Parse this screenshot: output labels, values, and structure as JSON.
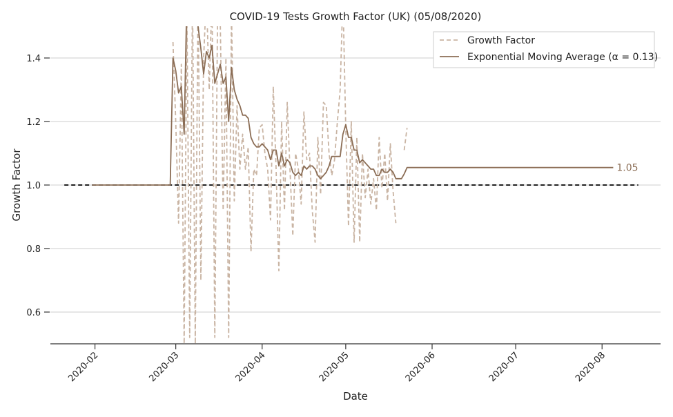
{
  "chart_data": {
    "type": "line",
    "title": "COVID-19 Tests Growth Factor (UK) (05/08/2020)",
    "xlabel": "Date",
    "ylabel": "Growth Factor",
    "xlim": [
      "2020-01-16",
      "2020-08-22"
    ],
    "ylim": [
      0.5,
      1.5
    ],
    "x_ticks": [
      "2020-02-01",
      "2020-03-01",
      "2020-04-01",
      "2020-05-01",
      "2020-06-01",
      "2020-07-01",
      "2020-08-01"
    ],
    "x_tick_labels": [
      "2020-02",
      "2020-03",
      "2020-04",
      "2020-05",
      "2020-06",
      "2020-07",
      "2020-08"
    ],
    "y_ticks": [
      0.6,
      0.8,
      1.0,
      1.2,
      1.4
    ],
    "y_tick_labels": [
      "0.6",
      "0.8",
      "1.0",
      "1.2",
      "1.4"
    ],
    "grid": "horizontal",
    "legend_position": "upper-right",
    "series": [
      {
        "name": "Growth Factor",
        "style": "dashed",
        "color": "#c9b4a3",
        "points": [
          [
            "2020-02-29",
            1.45
          ],
          [
            "2020-03-01",
            1.2
          ],
          [
            "2020-03-02",
            0.88
          ],
          [
            "2020-03-03",
            1.38
          ],
          [
            "2020-03-04",
            0.5
          ],
          [
            "2020-03-05",
            1.55
          ],
          [
            "2020-03-06",
            0.52
          ],
          [
            "2020-03-07",
            1.6
          ],
          [
            "2020-03-08",
            0.5
          ],
          [
            "2020-03-09",
            1.6
          ],
          [
            "2020-03-10",
            0.7
          ],
          [
            "2020-03-11",
            1.4
          ],
          [
            "2020-03-12",
            1.6
          ],
          [
            "2020-03-13",
            1.3
          ],
          [
            "2020-03-14",
            1.6
          ],
          [
            "2020-03-15",
            0.52
          ],
          [
            "2020-03-16",
            1.55
          ],
          [
            "2020-03-17",
            1.5
          ],
          [
            "2020-03-18",
            0.92
          ],
          [
            "2020-03-19",
            1.4
          ],
          [
            "2020-03-20",
            0.52
          ],
          [
            "2020-03-21",
            1.55
          ],
          [
            "2020-03-22",
            0.95
          ],
          [
            "2020-03-23",
            1.25
          ],
          [
            "2020-03-24",
            1.05
          ],
          [
            "2020-03-25",
            1.16
          ],
          [
            "2020-03-26",
            1.05
          ],
          [
            "2020-03-27",
            1.12
          ],
          [
            "2020-03-28",
            0.79
          ],
          [
            "2020-03-29",
            1.05
          ],
          [
            "2020-03-30",
            1.03
          ],
          [
            "2020-03-31",
            1.18
          ],
          [
            "2020-04-01",
            1.19
          ],
          [
            "2020-04-02",
            1.1
          ],
          [
            "2020-04-03",
            1.05
          ],
          [
            "2020-04-04",
            0.89
          ],
          [
            "2020-04-05",
            1.31
          ],
          [
            "2020-04-06",
            1.05
          ],
          [
            "2020-04-07",
            0.73
          ],
          [
            "2020-04-08",
            1.2
          ],
          [
            "2020-04-09",
            0.92
          ],
          [
            "2020-04-10",
            1.26
          ],
          [
            "2020-04-11",
            1.05
          ],
          [
            "2020-04-12",
            0.84
          ],
          [
            "2020-04-13",
            1.1
          ],
          [
            "2020-04-14",
            1.05
          ],
          [
            "2020-04-15",
            0.94
          ],
          [
            "2020-04-16",
            1.23
          ],
          [
            "2020-04-17",
            1.08
          ],
          [
            "2020-04-18",
            1.1
          ],
          [
            "2020-04-19",
            0.92
          ],
          [
            "2020-04-20",
            0.82
          ],
          [
            "2020-04-21",
            1.15
          ],
          [
            "2020-04-22",
            0.97
          ],
          [
            "2020-04-23",
            1.26
          ],
          [
            "2020-04-24",
            1.25
          ],
          [
            "2020-04-25",
            1.1
          ],
          [
            "2020-04-26",
            1.03
          ],
          [
            "2020-04-27",
            1.08
          ],
          [
            "2020-04-28",
            1.2
          ],
          [
            "2020-04-29",
            1.3
          ],
          [
            "2020-04-30",
            1.6
          ],
          [
            "2020-05-01",
            1.18
          ],
          [
            "2020-05-02",
            0.87
          ],
          [
            "2020-05-03",
            1.2
          ],
          [
            "2020-05-04",
            0.82
          ],
          [
            "2020-05-05",
            1.15
          ],
          [
            "2020-05-06",
            0.82
          ],
          [
            "2020-05-07",
            1.1
          ],
          [
            "2020-05-08",
            0.96
          ],
          [
            "2020-05-09",
            1.05
          ],
          [
            "2020-05-10",
            0.94
          ],
          [
            "2020-05-11",
            1.02
          ],
          [
            "2020-05-12",
            0.92
          ],
          [
            "2020-05-13",
            1.15
          ],
          [
            "2020-05-14",
            0.99
          ],
          [
            "2020-05-15",
            1.1
          ],
          [
            "2020-05-16",
            0.95
          ],
          [
            "2020-05-17",
            1.13
          ],
          [
            "2020-05-18",
            0.98
          ],
          [
            "2020-05-19",
            0.88
          ],
          null,
          [
            "2020-05-22",
            1.11
          ],
          [
            "2020-05-23",
            1.18
          ]
        ]
      },
      {
        "name": "Exponential Moving Average (α = 0.13)",
        "style": "solid",
        "color": "#8b6d55",
        "points": [
          [
            "2020-01-31",
            1.0
          ],
          [
            "2020-02-28",
            1.0
          ],
          [
            "2020-02-29",
            1.4
          ],
          [
            "2020-03-01",
            1.36
          ],
          [
            "2020-03-02",
            1.29
          ],
          [
            "2020-03-03",
            1.31
          ],
          [
            "2020-03-04",
            1.16
          ],
          [
            "2020-03-05",
            1.6
          ],
          [
            "2020-03-06",
            1.6
          ],
          [
            "2020-03-07",
            1.6
          ],
          [
            "2020-03-08",
            1.6
          ],
          [
            "2020-03-09",
            1.5
          ],
          [
            "2020-03-10",
            1.43
          ],
          [
            "2020-03-11",
            1.35
          ],
          [
            "2020-03-12",
            1.42
          ],
          [
            "2020-03-13",
            1.4
          ],
          [
            "2020-03-14",
            1.44
          ],
          [
            "2020-03-15",
            1.32
          ],
          [
            "2020-03-16",
            1.35
          ],
          [
            "2020-03-17",
            1.38
          ],
          [
            "2020-03-18",
            1.32
          ],
          [
            "2020-03-19",
            1.34
          ],
          [
            "2020-03-20",
            1.2
          ],
          [
            "2020-03-21",
            1.37
          ],
          [
            "2020-03-22",
            1.3
          ],
          [
            "2020-03-23",
            1.27
          ],
          [
            "2020-03-24",
            1.25
          ],
          [
            "2020-03-25",
            1.22
          ],
          [
            "2020-03-26",
            1.22
          ],
          [
            "2020-03-27",
            1.21
          ],
          [
            "2020-03-28",
            1.15
          ],
          [
            "2020-03-29",
            1.13
          ],
          [
            "2020-03-30",
            1.12
          ],
          [
            "2020-03-31",
            1.12
          ],
          [
            "2020-04-01",
            1.13
          ],
          [
            "2020-04-02",
            1.12
          ],
          [
            "2020-04-03",
            1.11
          ],
          [
            "2020-04-04",
            1.08
          ],
          [
            "2020-04-05",
            1.11
          ],
          [
            "2020-04-06",
            1.11
          ],
          [
            "2020-04-07",
            1.06
          ],
          [
            "2020-04-08",
            1.1
          ],
          [
            "2020-04-09",
            1.06
          ],
          [
            "2020-04-10",
            1.08
          ],
          [
            "2020-04-11",
            1.07
          ],
          [
            "2020-04-12",
            1.04
          ],
          [
            "2020-04-13",
            1.03
          ],
          [
            "2020-04-14",
            1.04
          ],
          [
            "2020-04-15",
            1.03
          ],
          [
            "2020-04-16",
            1.06
          ],
          [
            "2020-04-17",
            1.05
          ],
          [
            "2020-04-18",
            1.06
          ],
          [
            "2020-04-19",
            1.06
          ],
          [
            "2020-04-20",
            1.05
          ],
          [
            "2020-04-21",
            1.03
          ],
          [
            "2020-04-22",
            1.02
          ],
          [
            "2020-04-23",
            1.03
          ],
          [
            "2020-04-24",
            1.04
          ],
          [
            "2020-04-25",
            1.06
          ],
          [
            "2020-04-26",
            1.09
          ],
          [
            "2020-04-27",
            1.09
          ],
          [
            "2020-04-28",
            1.09
          ],
          [
            "2020-04-29",
            1.09
          ],
          [
            "2020-04-30",
            1.16
          ],
          [
            "2020-05-01",
            1.19
          ],
          [
            "2020-05-02",
            1.15
          ],
          [
            "2020-05-03",
            1.15
          ],
          [
            "2020-05-04",
            1.11
          ],
          [
            "2020-05-05",
            1.11
          ],
          [
            "2020-05-06",
            1.07
          ],
          [
            "2020-05-07",
            1.08
          ],
          [
            "2020-05-08",
            1.07
          ],
          [
            "2020-05-09",
            1.06
          ],
          [
            "2020-05-10",
            1.05
          ],
          [
            "2020-05-11",
            1.05
          ],
          [
            "2020-05-12",
            1.03
          ],
          [
            "2020-05-13",
            1.03
          ],
          [
            "2020-05-14",
            1.05
          ],
          [
            "2020-05-15",
            1.04
          ],
          [
            "2020-05-16",
            1.04
          ],
          [
            "2020-05-17",
            1.05
          ],
          [
            "2020-05-18",
            1.04
          ],
          [
            "2020-05-19",
            1.02
          ],
          [
            "2020-05-20",
            1.02
          ],
          [
            "2020-05-21",
            1.02
          ],
          [
            "2020-05-22",
            1.035
          ],
          [
            "2020-05-23",
            1.055
          ],
          [
            "2020-08-05",
            1.055
          ]
        ]
      }
    ],
    "reference_line": {
      "y": 1.0,
      "x_start": "2020-01-21",
      "x_end": "2020-08-14",
      "style": "dashed",
      "color": "#000000"
    },
    "annotations": [
      {
        "text": "1.05",
        "x": "2020-08-05",
        "y": 1.055,
        "color": "#8b6d55"
      }
    ]
  }
}
